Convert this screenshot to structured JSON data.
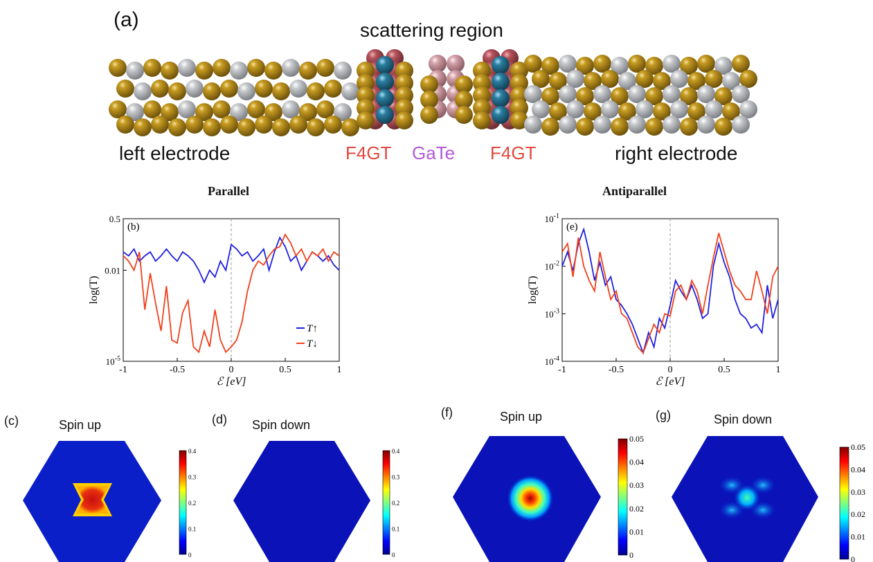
{
  "labels": {
    "panel_a": "(a)",
    "scattering_region": "scattering region",
    "left_electrode": "left electrode",
    "right_electrode": "right electrode",
    "f4gt_left": "F4GT",
    "gate": "GaTe",
    "f4gt_right": "F4GT",
    "parallel": "Parallel",
    "antiparallel": "Antiparallel",
    "panel_c": "(c)",
    "panel_d": "(d)",
    "panel_f": "(f)",
    "panel_g": "(g)",
    "spin_up_c": "Spin up",
    "spin_down_d": "Spin down",
    "spin_up_f": "Spin up",
    "spin_down_g": "Spin down"
  },
  "colors": {
    "gold": "#a47d12",
    "silver": "#b9bbbf",
    "red_atom": "#b5525b",
    "blue_atom": "#2b7ea0",
    "pink_atom": "#d3a0a8",
    "f4gt_text": "#e0473d",
    "gate_text": "#b15ad6",
    "t_up": "#1f1fe0",
    "t_down": "#f0401a"
  },
  "chart_data": [
    {
      "type": "line",
      "panel": "(b)",
      "title": "Parallel",
      "xlabel": "ℰ [eV]",
      "ylabel": "log(T)",
      "xlim": [
        -1,
        1
      ],
      "ylim": [
        1e-05,
        0.5
      ],
      "yscale": "log",
      "xticks": [
        "-1",
        "-0.5",
        "0",
        "0.5",
        "1"
      ],
      "yticks": [
        "10^-5",
        "0.01",
        "0.5"
      ],
      "legend": "bottom-right",
      "series": [
        {
          "name": "T↑",
          "x": [
            -1,
            -0.95,
            -0.9,
            -0.85,
            -0.8,
            -0.75,
            -0.7,
            -0.65,
            -0.6,
            -0.55,
            -0.5,
            -0.45,
            -0.4,
            -0.35,
            -0.3,
            -0.25,
            -0.2,
            -0.15,
            -0.1,
            -0.05,
            0,
            0.05,
            0.1,
            0.15,
            0.2,
            0.25,
            0.3,
            0.35,
            0.4,
            0.45,
            0.5,
            0.55,
            0.6,
            0.65,
            0.7,
            0.75,
            0.8,
            0.85,
            0.9,
            0.95,
            1
          ],
          "y": [
            0.04,
            0.03,
            0.05,
            0.02,
            0.03,
            0.04,
            0.02,
            0.03,
            0.05,
            0.03,
            0.02,
            0.04,
            0.03,
            0.02,
            0.01,
            0.004,
            0.01,
            0.006,
            0.02,
            0.01,
            0.07,
            0.05,
            0.03,
            0.04,
            0.02,
            0.03,
            0.05,
            0.01,
            0.04,
            0.12,
            0.06,
            0.02,
            0.03,
            0.01,
            0.02,
            0.04,
            0.03,
            0.02,
            0.03,
            0.015,
            0.01
          ]
        },
        {
          "name": "T↓",
          "x": [
            -1,
            -0.95,
            -0.9,
            -0.85,
            -0.8,
            -0.75,
            -0.7,
            -0.65,
            -0.6,
            -0.55,
            -0.5,
            -0.45,
            -0.4,
            -0.35,
            -0.3,
            -0.25,
            -0.2,
            -0.15,
            -0.1,
            -0.05,
            0,
            0.05,
            0.1,
            0.15,
            0.2,
            0.25,
            0.3,
            0.35,
            0.4,
            0.45,
            0.5,
            0.55,
            0.6,
            0.65,
            0.7,
            0.75,
            0.8,
            0.85,
            0.9,
            0.95,
            1
          ],
          "y": [
            0.03,
            0.02,
            0.01,
            0.04,
            0.0005,
            0.008,
            0.0008,
            0.0001,
            0.003,
            5e-05,
            4e-05,
            0.0004,
            0.001,
            3e-05,
            2e-05,
            0.0001,
            3e-05,
            0.0005,
            5e-05,
            2e-05,
            3e-05,
            5e-05,
            0.0002,
            0.002,
            0.01,
            0.02,
            0.015,
            0.03,
            0.05,
            0.06,
            0.15,
            0.08,
            0.03,
            0.05,
            0.02,
            0.04,
            0.03,
            0.05,
            0.02,
            0.04,
            0.03
          ]
        }
      ]
    },
    {
      "type": "line",
      "panel": "(e)",
      "title": "Antiparallel",
      "xlabel": "ℰ [eV]",
      "ylabel": "log(T)",
      "xlim": [
        -1,
        1
      ],
      "ylim": [
        0.0001,
        0.1
      ],
      "yscale": "log",
      "xticks": [
        "-1",
        "-0.5",
        "0",
        "0.5",
        "1"
      ],
      "yticks": [
        "10^-4",
        "10^-3",
        "10^-2",
        "10^-1"
      ],
      "series": [
        {
          "name": "T↑",
          "x": [
            -1,
            -0.95,
            -0.9,
            -0.85,
            -0.8,
            -0.75,
            -0.7,
            -0.65,
            -0.6,
            -0.55,
            -0.5,
            -0.45,
            -0.4,
            -0.35,
            -0.3,
            -0.25,
            -0.2,
            -0.15,
            -0.1,
            -0.05,
            0,
            0.05,
            0.1,
            0.15,
            0.2,
            0.25,
            0.3,
            0.35,
            0.4,
            0.45,
            0.5,
            0.55,
            0.6,
            0.65,
            0.7,
            0.75,
            0.8,
            0.85,
            0.9,
            0.95,
            1
          ],
          "y": [
            0.01,
            0.02,
            0.008,
            0.03,
            0.06,
            0.02,
            0.005,
            0.012,
            0.004,
            0.006,
            0.002,
            0.0015,
            0.001,
            0.0006,
            0.0003,
            0.00015,
            0.0004,
            0.0002,
            0.0008,
            0.0005,
            0.0015,
            0.005,
            0.003,
            0.002,
            0.004,
            0.002,
            0.0008,
            0.001,
            0.01,
            0.03,
            0.012,
            0.006,
            0.002,
            0.001,
            0.0008,
            0.0005,
            0.0006,
            0.0004,
            0.004,
            0.0008,
            0.002
          ]
        },
        {
          "name": "T↓",
          "x": [
            -1,
            -0.95,
            -0.9,
            -0.85,
            -0.8,
            -0.75,
            -0.7,
            -0.65,
            -0.6,
            -0.55,
            -0.5,
            -0.45,
            -0.4,
            -0.35,
            -0.3,
            -0.25,
            -0.2,
            -0.15,
            -0.1,
            -0.05,
            0,
            0.05,
            0.1,
            0.15,
            0.2,
            0.25,
            0.3,
            0.35,
            0.4,
            0.45,
            0.5,
            0.55,
            0.6,
            0.65,
            0.7,
            0.75,
            0.8,
            0.85,
            0.9,
            0.95,
            1
          ],
          "y": [
            0.02,
            0.03,
            0.006,
            0.04,
            0.01,
            0.005,
            0.003,
            0.02,
            0.006,
            0.002,
            0.003,
            0.001,
            0.0008,
            0.0004,
            0.0002,
            0.00015,
            0.0003,
            0.0006,
            0.0004,
            0.001,
            0.0009,
            0.003,
            0.004,
            0.002,
            0.005,
            0.003,
            0.001,
            0.004,
            0.015,
            0.05,
            0.02,
            0.008,
            0.004,
            0.003,
            0.002,
            0.002,
            0.008,
            0.003,
            0.001,
            0.006,
            0.01
          ]
        }
      ]
    },
    {
      "type": "heatmap",
      "panel": "(c)",
      "title": "Spin up",
      "colorbar_range": [
        0,
        0.4
      ],
      "colorbar_ticks": [
        "0",
        "0.1",
        "0.2",
        "0.3",
        "0.4"
      ]
    },
    {
      "type": "heatmap",
      "panel": "(d)",
      "title": "Spin down",
      "colorbar_range": [
        0,
        0.4
      ],
      "colorbar_ticks": [
        "0",
        "0.1",
        "0.2",
        "0.3",
        "0.4"
      ]
    },
    {
      "type": "heatmap",
      "panel": "(f)",
      "title": "Spin up",
      "colorbar_range": [
        0,
        0.05
      ],
      "colorbar_ticks": [
        "0",
        "0.01",
        "0.02",
        "0.03",
        "0.04",
        "0.05"
      ]
    },
    {
      "type": "heatmap",
      "panel": "(g)",
      "title": "Spin down",
      "colorbar_range": [
        0,
        0.05
      ],
      "colorbar_ticks": [
        "0",
        "0.01",
        "0.02",
        "0.03",
        "0.04",
        "0.05"
      ]
    }
  ]
}
